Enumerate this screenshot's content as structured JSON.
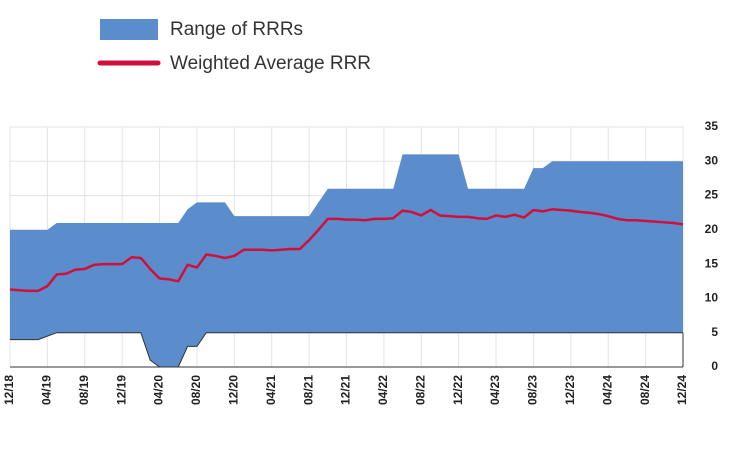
{
  "chart_data": {
    "type": "range",
    "categories": [
      "12/18",
      null,
      null,
      null,
      "04/19",
      null,
      null,
      null,
      "08/19",
      null,
      null,
      null,
      "12/19",
      null,
      null,
      null,
      "04/20",
      null,
      null,
      null,
      "08/20",
      null,
      null,
      null,
      "12/20",
      null,
      null,
      null,
      "04/21",
      null,
      null,
      null,
      "08/21",
      null,
      null,
      null,
      "12/21",
      null,
      null,
      null,
      "04/22",
      null,
      null,
      null,
      "08/22",
      null,
      null,
      null,
      "12/22",
      null,
      null,
      null,
      "04/23",
      null,
      null,
      null,
      "08/23",
      null,
      null,
      null,
      "12/23",
      null,
      null,
      null,
      "04/24",
      null,
      null,
      null,
      "08/24",
      null,
      null,
      null,
      "12/24"
    ],
    "series": [
      {
        "name": "Range of RRRs",
        "color": "#5b8ccc",
        "low": [
          4,
          4,
          4,
          4,
          4.5,
          5,
          5,
          5,
          5,
          5,
          5,
          5,
          5,
          5,
          5,
          1,
          0,
          0,
          0,
          3,
          3,
          5,
          5,
          5,
          5,
          5,
          5,
          5,
          5,
          5,
          5,
          5,
          5,
          5,
          5,
          5,
          5,
          5,
          5,
          5,
          5,
          5,
          5,
          5,
          5,
          5,
          5,
          5,
          5,
          5,
          5,
          5,
          5,
          5,
          5,
          5,
          5,
          5,
          5,
          5,
          5,
          5,
          5,
          5,
          5,
          5,
          5,
          5,
          5,
          5,
          5,
          5,
          5
        ],
        "high": [
          20,
          20,
          20,
          20,
          20,
          21,
          21,
          21,
          21,
          21,
          21,
          21,
          21,
          21,
          21,
          21,
          21,
          21,
          21,
          23,
          24,
          24,
          24,
          24,
          22,
          22,
          22,
          22,
          22,
          22,
          22,
          22,
          22,
          24,
          26,
          26,
          26,
          26,
          26,
          26,
          26,
          26,
          31,
          31,
          31,
          31,
          31,
          31,
          31,
          26,
          26,
          26,
          26,
          26,
          26,
          26,
          29,
          29,
          30,
          30,
          30,
          30,
          30,
          30,
          30,
          30,
          30,
          30,
          30,
          30,
          30,
          30,
          30
        ]
      },
      {
        "name": "Weighted Average RRR",
        "color": "#d0103a",
        "values": [
          11.3,
          11.2,
          11.1,
          11.1,
          11.8,
          13.5,
          13.6,
          14.2,
          14.3,
          14.9,
          15,
          15,
          15,
          16,
          15.9,
          14.3,
          12.9,
          12.8,
          12.5,
          14.9,
          14.5,
          16.4,
          16.2,
          15.9,
          16.2,
          17.1,
          17.1,
          17.1,
          17,
          17.1,
          17.2,
          17.2,
          18.5,
          20,
          21.6,
          21.6,
          21.5,
          21.5,
          21.4,
          21.6,
          21.6,
          21.7,
          22.8,
          22.6,
          22.1,
          22.9,
          22.1,
          22,
          21.9,
          21.9,
          21.7,
          21.6,
          22.1,
          21.9,
          22.2,
          21.8,
          22.9,
          22.7,
          23,
          22.9,
          22.8,
          22.6,
          22.5,
          22.3,
          22,
          21.6,
          21.4,
          21.4,
          21.3,
          21.2,
          21.1,
          21,
          20.8
        ]
      }
    ],
    "ylim": [
      0,
      35
    ],
    "yticks": [
      0,
      5,
      10,
      15,
      20,
      25,
      30,
      35
    ],
    "grid": true,
    "legend": "top-left"
  }
}
